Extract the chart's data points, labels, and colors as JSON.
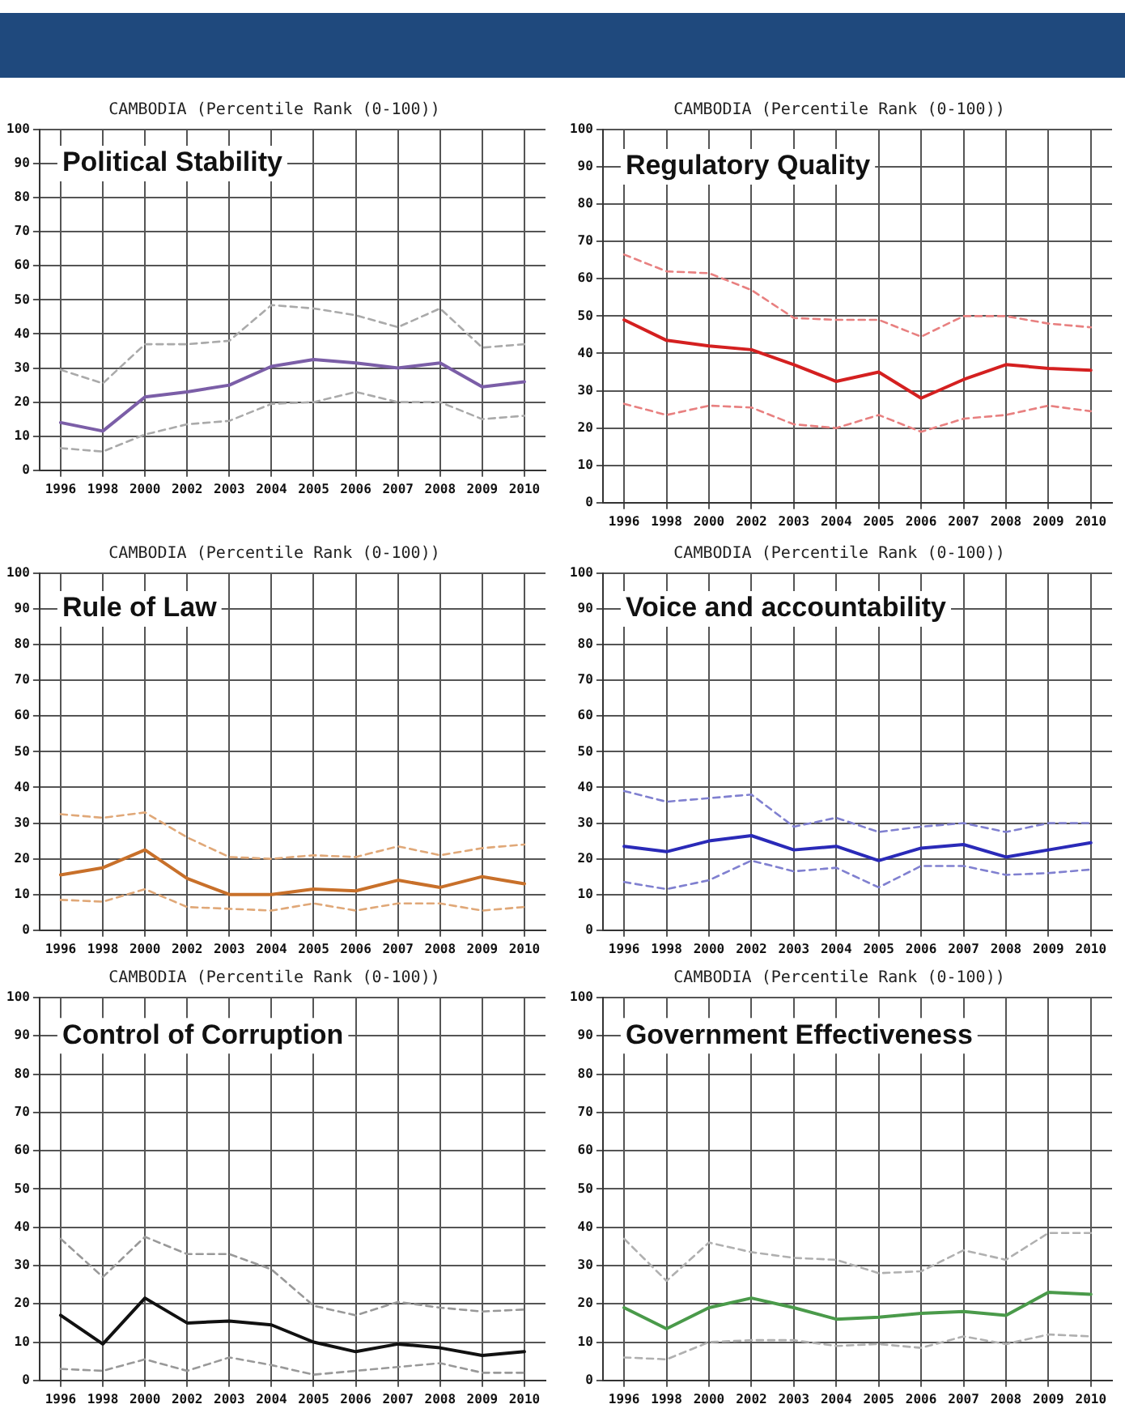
{
  "chart_data": [
    {
      "type": "line",
      "title": "CAMBODIA (Percentile Rank (0-100))",
      "annotations": [
        "Political Stability"
      ],
      "categories": [
        "1996",
        "1998",
        "2000",
        "2002",
        "2003",
        "2004",
        "2005",
        "2006",
        "2007",
        "2008",
        "2009",
        "2010"
      ],
      "ylim": [
        0,
        100
      ],
      "yticks": [
        0,
        10,
        20,
        30,
        40,
        50,
        60,
        70,
        80,
        90,
        100
      ],
      "grid": true,
      "marker": "none",
      "series": [
        {
          "color": "#aaaaaa",
          "line_style": "dashed",
          "values": [
            29.5,
            25.5,
            37,
            37,
            38,
            48.5,
            47.5,
            45.5,
            42,
            47.5,
            36,
            37
          ]
        },
        {
          "color": "#aaaaaa",
          "line_style": "dashed",
          "values": [
            6.5,
            5.5,
            10.5,
            13.5,
            14.5,
            19.5,
            20,
            23,
            20,
            20,
            15,
            16
          ]
        },
        {
          "color": "#7b5ea7",
          "line_style": "solid",
          "values": [
            14,
            11.5,
            21.5,
            23,
            25,
            30.5,
            32.5,
            31.5,
            30,
            31.5,
            24.5,
            26
          ]
        }
      ]
    },
    {
      "type": "line",
      "title": "CAMBODIA (Percentile Rank (0-100))",
      "annotations": [
        "Regulatory Quality"
      ],
      "categories": [
        "1996",
        "1998",
        "2000",
        "2002",
        "2003",
        "2004",
        "2005",
        "2006",
        "2007",
        "2008",
        "2009",
        "2010"
      ],
      "ylim": [
        0,
        100
      ],
      "yticks": [
        0,
        10,
        20,
        30,
        40,
        50,
        60,
        70,
        80,
        90,
        100
      ],
      "grid": true,
      "marker": "none",
      "series": [
        {
          "color": "#e88080",
          "line_style": "dashed",
          "values": [
            66.5,
            62,
            61.5,
            57,
            49.5,
            49,
            49,
            44.5,
            50,
            50,
            48,
            47
          ]
        },
        {
          "color": "#e88080",
          "line_style": "dashed",
          "values": [
            26.5,
            23.5,
            26,
            25.5,
            21,
            20,
            23.5,
            19,
            22.5,
            23.5,
            26,
            24.5
          ]
        },
        {
          "color": "#d42020",
          "line_style": "solid",
          "values": [
            49,
            43.5,
            42,
            41,
            37,
            32.5,
            35,
            28,
            33,
            37,
            36,
            35.5
          ]
        }
      ]
    },
    {
      "type": "line",
      "title": "CAMBODIA (Percentile Rank (0-100))",
      "annotations": [
        "Rule of Law"
      ],
      "categories": [
        "1996",
        "1998",
        "2000",
        "2002",
        "2003",
        "2004",
        "2005",
        "2006",
        "2007",
        "2008",
        "2009",
        "2010"
      ],
      "ylim": [
        0,
        100
      ],
      "yticks": [
        0,
        10,
        20,
        30,
        40,
        50,
        60,
        70,
        80,
        90,
        100
      ],
      "grid": true,
      "marker": "none",
      "series": [
        {
          "color": "#e0a878",
          "line_style": "dashed",
          "values": [
            32.5,
            31.5,
            33,
            26,
            20.5,
            20,
            21,
            20.5,
            23.5,
            21,
            23,
            24
          ]
        },
        {
          "color": "#e0a878",
          "line_style": "dashed",
          "values": [
            8.5,
            8,
            11.5,
            6.5,
            6,
            5.5,
            7.5,
            5.5,
            7.5,
            7.5,
            5.5,
            6.5
          ]
        },
        {
          "color": "#c8702a",
          "line_style": "solid",
          "values": [
            15.5,
            17.5,
            22.5,
            14.5,
            10,
            10,
            11.5,
            11,
            14,
            12,
            15,
            13
          ]
        }
      ]
    },
    {
      "type": "line",
      "title": "CAMBODIA (Percentile Rank (0-100))",
      "annotations": [
        "Voice and accountability"
      ],
      "categories": [
        "1996",
        "1998",
        "2000",
        "2002",
        "2003",
        "2004",
        "2005",
        "2006",
        "2007",
        "2008",
        "2009",
        "2010"
      ],
      "ylim": [
        0,
        100
      ],
      "yticks": [
        0,
        10,
        20,
        30,
        40,
        50,
        60,
        70,
        80,
        90,
        100
      ],
      "grid": true,
      "marker": "none",
      "series": [
        {
          "color": "#8080d0",
          "line_style": "dashed",
          "values": [
            39,
            36,
            37,
            38,
            29,
            31.5,
            27.5,
            29,
            30,
            27.5,
            30,
            30
          ]
        },
        {
          "color": "#8080d0",
          "line_style": "dashed",
          "values": [
            13.5,
            11.5,
            14,
            19.5,
            16.5,
            17.5,
            12,
            18,
            18,
            15.5,
            16,
            17
          ]
        },
        {
          "color": "#2a2ab8",
          "line_style": "solid",
          "values": [
            23.5,
            22,
            25,
            26.5,
            22.5,
            23.5,
            19.5,
            23,
            24,
            20.5,
            22.5,
            24.5
          ]
        }
      ]
    },
    {
      "type": "line",
      "title": "CAMBODIA (Percentile Rank (0-100))",
      "annotations": [
        "Control of Corruption"
      ],
      "categories": [
        "1996",
        "1998",
        "2000",
        "2002",
        "2003",
        "2004",
        "2005",
        "2006",
        "2007",
        "2008",
        "2009",
        "2010"
      ],
      "ylim": [
        0,
        100
      ],
      "yticks": [
        0,
        10,
        20,
        30,
        40,
        50,
        60,
        70,
        80,
        90,
        100
      ],
      "grid": true,
      "marker": "none",
      "series": [
        {
          "color": "#999999",
          "line_style": "dashed",
          "values": [
            37,
            27,
            37.5,
            33,
            33,
            29,
            19.5,
            17,
            20.5,
            19,
            18,
            18.5
          ]
        },
        {
          "color": "#999999",
          "line_style": "dashed",
          "values": [
            3,
            2.5,
            5.5,
            2.5,
            6,
            4,
            1.5,
            2.5,
            3.5,
            4.5,
            2,
            2
          ]
        },
        {
          "color": "#111111",
          "line_style": "solid",
          "values": [
            17,
            9.5,
            21.5,
            15,
            15.5,
            14.5,
            10,
            7.5,
            9.5,
            8.5,
            6.5,
            7.5
          ]
        }
      ]
    },
    {
      "type": "line",
      "title": "CAMBODIA (Percentile Rank (0-100))",
      "annotations": [
        "Government Effectiveness"
      ],
      "categories": [
        "1996",
        "1998",
        "2000",
        "2002",
        "2003",
        "2004",
        "2005",
        "2006",
        "2007",
        "2008",
        "2009",
        "2010"
      ],
      "ylim": [
        0,
        100
      ],
      "yticks": [
        0,
        10,
        20,
        30,
        40,
        50,
        60,
        70,
        80,
        90,
        100
      ],
      "grid": true,
      "marker": "none",
      "series": [
        {
          "color": "#b0b0b0",
          "line_style": "dashed",
          "values": [
            37,
            26,
            36,
            33.5,
            32,
            31.5,
            28,
            28.5,
            34,
            31.5,
            38.5,
            38.5
          ]
        },
        {
          "color": "#b0b0b0",
          "line_style": "dashed",
          "values": [
            6,
            5.5,
            10,
            10.5,
            10.5,
            9,
            9.5,
            8.5,
            11.5,
            9.5,
            12,
            11.5
          ]
        },
        {
          "color": "#4a9a4a",
          "line_style": "solid",
          "values": [
            19,
            13.5,
            19,
            21.5,
            19,
            16,
            16.5,
            17.5,
            18,
            17,
            23,
            22.5
          ]
        }
      ]
    }
  ]
}
